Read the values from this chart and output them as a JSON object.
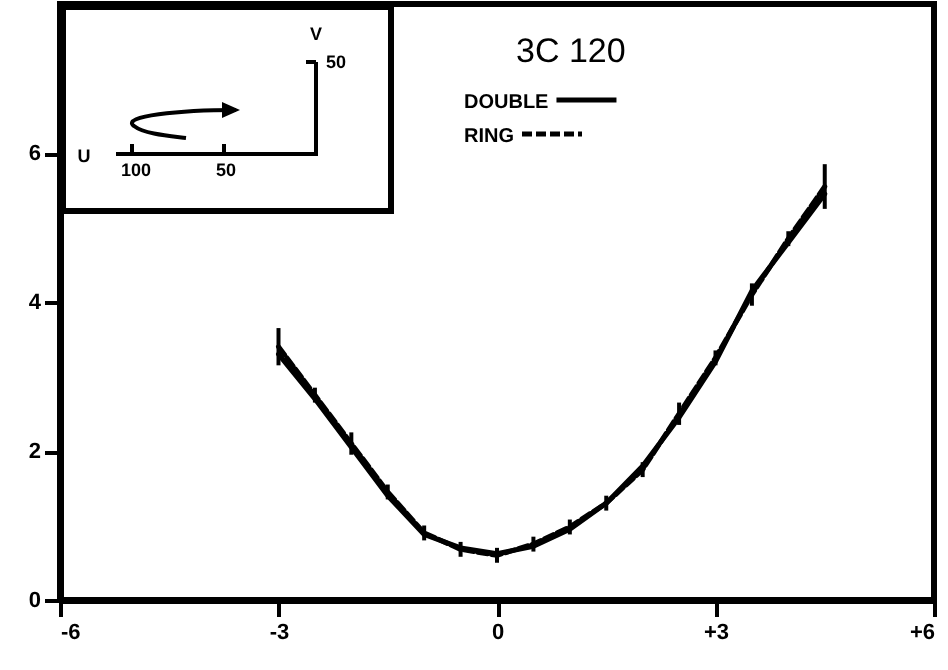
{
  "chart_data": {
    "type": "line",
    "title": "3C 120",
    "annotations": [
      "U",
      "100",
      "50",
      "V",
      "50"
    ],
    "xlim": [
      -6,
      6
    ],
    "xticks": [
      -6,
      -3,
      0,
      {
        "value": 3,
        "label": "+3"
      },
      {
        "value": 6,
        "label": "+6"
      }
    ],
    "ylim": [
      0,
      8
    ],
    "yticks": [
      0,
      2,
      4,
      6
    ],
    "series": [
      {
        "name": "DOUBLE",
        "color": "#000000",
        "line_style": "solid",
        "x": [
          -3,
          -2.5,
          -2,
          -1.5,
          -1,
          -0.5,
          0,
          0.5,
          1,
          1.5,
          2,
          2.5,
          3,
          3.5,
          4,
          4.5
        ],
        "values": [
          3.3,
          2.7,
          2.05,
          1.4,
          0.88,
          0.7,
          0.62,
          0.72,
          0.95,
          1.3,
          1.8,
          2.45,
          3.2,
          4.15,
          4.8,
          5.45
        ]
      },
      {
        "name": "RING",
        "color": "#000000",
        "line_style": "dashed",
        "x": [
          -3,
          -2.5,
          -2,
          -1.5,
          -1,
          -0.5,
          0,
          0.5,
          1,
          1.5,
          2,
          2.5,
          3,
          3.5,
          4,
          4.5
        ],
        "values": [
          3.4,
          2.75,
          2.1,
          1.45,
          0.9,
          0.68,
          0.6,
          0.75,
          0.98,
          1.3,
          1.75,
          2.5,
          3.25,
          4.1,
          4.85,
          5.55
        ],
        "errors": [
          0.25,
          0.1,
          0.15,
          0.1,
          0.1,
          0.1,
          0.1,
          0.1,
          0.1,
          0.1,
          0.1,
          0.15,
          0.1,
          0.15,
          0.1,
          0.3
        ]
      }
    ],
    "legend": "top",
    "grid": false
  }
}
